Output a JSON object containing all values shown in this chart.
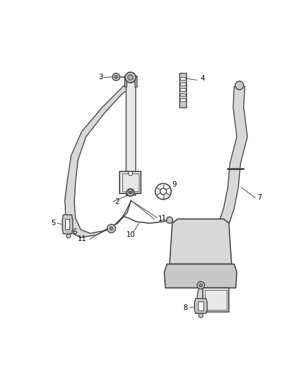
{
  "background_color": "#ffffff",
  "fig_width": 4.38,
  "fig_height": 5.33,
  "dpi": 100,
  "line_color": "#444444",
  "label_color": "#000000",
  "label_fontsize": 7.5,
  "belt_fill": "#d8d8d8",
  "part_fill": "#c8c8c8",
  "part_fill2": "#e8e8e8"
}
